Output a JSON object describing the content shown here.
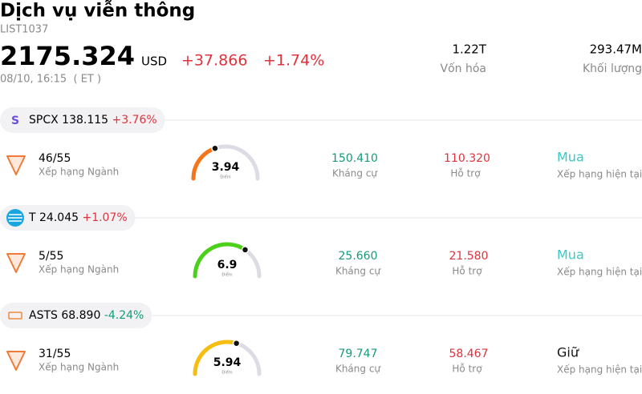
{
  "header": {
    "title": "Dịch vụ viễn thông",
    "code": "LIST1037",
    "price": "2175.324",
    "currency": "USD",
    "change": "+37.866",
    "change_pct": "+1.74%",
    "time": "08/10, 16:15  ( ET )"
  },
  "stats": [
    {
      "value": "1.22T",
      "label": "Vốn hóa"
    },
    {
      "value": "293.47M",
      "label": "Khối lượng"
    }
  ],
  "stocks": [
    {
      "logo": "S",
      "ticker": "SPCX",
      "price": "138.115",
      "change": "+3.76%",
      "change_color": "#e0323c",
      "rank": "46/55",
      "rank_label": "Xếp hạng Ngành",
      "score": 3.94,
      "score_label": "Điểm",
      "gauge_color": "#f5761a",
      "resistance": "150.410",
      "resistance_label": "Kháng cự",
      "support": "110.320",
      "support_label": "Hỗ trợ",
      "rating": "Mua",
      "rating_color": "#3cc8c8",
      "rating_label": "Xếp hạng hiện tại"
    },
    {
      "ticker": "T",
      "price": "24.045",
      "change": "+1.07%",
      "change_color": "#e0323c",
      "rank": "5/55",
      "rank_label": "Xếp hạng Ngành",
      "score": 6.9,
      "score_label": "Điểm",
      "gauge_color": "#4cd11a",
      "resistance": "25.660",
      "resistance_label": "Kháng cự",
      "support": "21.580",
      "support_label": "Hỗ trợ",
      "rating": "Mua",
      "rating_color": "#3cc8c8",
      "rating_label": "Xếp hạng hiện tại"
    },
    {
      "ticker": "ASTS",
      "price": "68.890",
      "change": "-4.24%",
      "change_color": "#159b7a",
      "rank": "31/55",
      "rank_label": "Xếp hạng Ngành",
      "score": 5.94,
      "score_label": "Điểm",
      "gauge_color": "#f7bd0f",
      "resistance": "79.747",
      "resistance_label": "Kháng cự",
      "support": "58.467",
      "support_label": "Hỗ trợ",
      "rating": "Giữ",
      "rating_color": "#111111",
      "rating_label": "Xếp hạng hiện tại"
    }
  ]
}
